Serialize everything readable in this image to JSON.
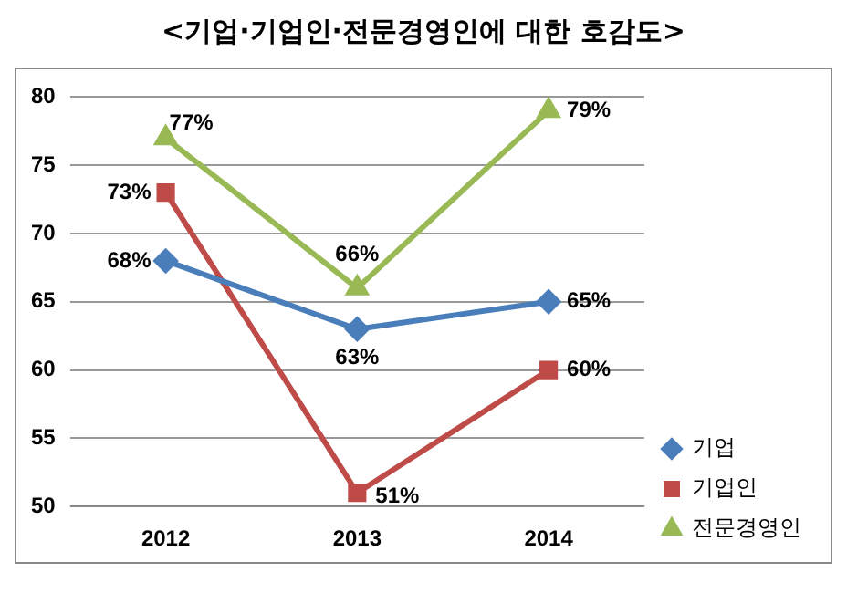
{
  "chart_data": {
    "type": "line",
    "title": "<기업·기업인·전문경영인에 대한 호감도>",
    "categories": [
      "2012",
      "2013",
      "2014"
    ],
    "series": [
      {
        "name": "기업",
        "color": "#4a7ebb",
        "marker": "diamond",
        "values": [
          68,
          63,
          65
        ],
        "value_labels": [
          "68%",
          "63%",
          "65%"
        ]
      },
      {
        "name": "기업인",
        "color": "#be4b48",
        "marker": "square",
        "values": [
          73,
          51,
          60
        ],
        "value_labels": [
          "73%",
          "51%",
          "60%"
        ]
      },
      {
        "name": "전문경영인",
        "color": "#98b954",
        "marker": "triangle",
        "values": [
          77,
          66,
          79
        ],
        "value_labels": [
          "77%",
          "66%",
          "79%"
        ]
      }
    ],
    "ylim": [
      50,
      80
    ],
    "yticks": [
      50,
      55,
      60,
      65,
      70,
      75,
      80
    ],
    "grid": "y",
    "legend": "bottom right",
    "line_style": "solid"
  }
}
